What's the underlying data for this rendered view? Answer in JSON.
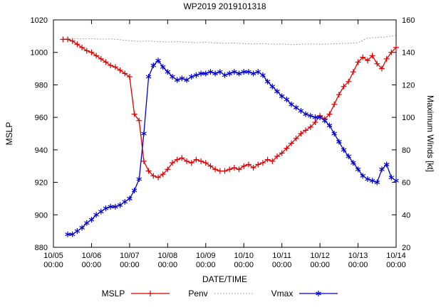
{
  "chart_data": {
    "type": "line",
    "title": "WP2019 2019101318",
    "xlabel": "DATE/TIME",
    "ylabel_left": "MSLP",
    "ylabel_right": "Maximum Winds [kt]",
    "grid": false,
    "legend_position": "bottom-center",
    "x_axis": {
      "min": 0,
      "max": 9,
      "tick_labels": [
        [
          "10/05",
          "00:00"
        ],
        [
          "10/06",
          "00:00"
        ],
        [
          "10/07",
          "00:00"
        ],
        [
          "10/08",
          "00:00"
        ],
        [
          "10/09",
          "00:00"
        ],
        [
          "10/10",
          "00:00"
        ],
        [
          "10/11",
          "00:00"
        ],
        [
          "10/12",
          "00:00"
        ],
        [
          "10/13",
          "00:00"
        ],
        [
          "10/14",
          "00:00"
        ]
      ]
    },
    "y_left": {
      "min": 880,
      "max": 1020,
      "step": 20
    },
    "y_right": {
      "min": 20,
      "max": 160,
      "step": 20
    },
    "series": [
      {
        "name": "MSLP",
        "axis": "left",
        "color": "#dd0000",
        "style": "solid",
        "marker": "plus",
        "points": [
          [
            0.25,
            1008
          ],
          [
            0.375,
            1008
          ],
          [
            0.5,
            1007
          ],
          [
            0.625,
            1005
          ],
          [
            0.75,
            1003
          ],
          [
            0.875,
            1001
          ],
          [
            1.0,
            1000
          ],
          [
            1.125,
            998
          ],
          [
            1.25,
            996
          ],
          [
            1.375,
            994
          ],
          [
            1.5,
            992
          ],
          [
            1.625,
            991
          ],
          [
            1.75,
            989
          ],
          [
            1.875,
            987
          ],
          [
            2.0,
            985
          ],
          [
            2.125,
            962
          ],
          [
            2.25,
            958
          ],
          [
            2.375,
            933
          ],
          [
            2.5,
            927
          ],
          [
            2.625,
            924
          ],
          [
            2.75,
            923
          ],
          [
            2.875,
            925
          ],
          [
            3.0,
            928
          ],
          [
            3.125,
            932
          ],
          [
            3.25,
            934
          ],
          [
            3.375,
            935
          ],
          [
            3.5,
            933
          ],
          [
            3.625,
            932
          ],
          [
            3.75,
            934
          ],
          [
            3.875,
            933
          ],
          [
            4.0,
            932
          ],
          [
            4.125,
            930
          ],
          [
            4.25,
            928
          ],
          [
            4.375,
            927
          ],
          [
            4.5,
            927
          ],
          [
            4.625,
            928
          ],
          [
            4.75,
            929
          ],
          [
            4.875,
            928
          ],
          [
            5.0,
            930
          ],
          [
            5.125,
            931
          ],
          [
            5.25,
            929
          ],
          [
            5.375,
            931
          ],
          [
            5.5,
            932
          ],
          [
            5.625,
            934
          ],
          [
            5.75,
            933
          ],
          [
            5.875,
            936
          ],
          [
            6.0,
            938
          ],
          [
            6.125,
            941
          ],
          [
            6.25,
            944
          ],
          [
            6.375,
            947
          ],
          [
            6.5,
            950
          ],
          [
            6.625,
            952
          ],
          [
            6.75,
            954
          ],
          [
            6.875,
            957
          ],
          [
            7.0,
            961
          ],
          [
            7.125,
            959
          ],
          [
            7.25,
            962
          ],
          [
            7.375,
            968
          ],
          [
            7.5,
            974
          ],
          [
            7.625,
            979
          ],
          [
            7.75,
            982
          ],
          [
            7.875,
            988
          ],
          [
            8.0,
            994
          ],
          [
            8.125,
            997
          ],
          [
            8.25,
            995
          ],
          [
            8.375,
            998
          ],
          [
            8.5,
            993
          ],
          [
            8.625,
            990
          ],
          [
            8.75,
            996
          ],
          [
            8.875,
            1000
          ],
          [
            9.0,
            1003
          ]
        ]
      },
      {
        "name": "Penv",
        "axis": "left",
        "color": "#888888",
        "style": "dotted",
        "marker": "none",
        "points": [
          [
            0.25,
            1008.5
          ],
          [
            0.5,
            1008.4
          ],
          [
            0.75,
            1008.3
          ],
          [
            1.0,
            1008.4
          ],
          [
            1.25,
            1008.2
          ],
          [
            1.5,
            1008.3
          ],
          [
            1.75,
            1007.8
          ],
          [
            2.0,
            1007.2
          ],
          [
            2.25,
            1006.8
          ],
          [
            2.5,
            1007.0
          ],
          [
            2.75,
            1006.6
          ],
          [
            3.0,
            1006.4
          ],
          [
            3.25,
            1006.6
          ],
          [
            3.5,
            1006.2
          ],
          [
            3.75,
            1006.0
          ],
          [
            4.0,
            1006.2
          ],
          [
            4.25,
            1005.8
          ],
          [
            4.5,
            1005.6
          ],
          [
            4.75,
            1005.8
          ],
          [
            5.0,
            1005.4
          ],
          [
            5.25,
            1005.2
          ],
          [
            5.5,
            1005.4
          ],
          [
            5.75,
            1005.0
          ],
          [
            6.0,
            1005.2
          ],
          [
            6.25,
            1004.8
          ],
          [
            6.5,
            1005.0
          ],
          [
            6.75,
            1005.2
          ],
          [
            7.0,
            1005.0
          ],
          [
            7.25,
            1005.2
          ],
          [
            7.5,
            1005.4
          ],
          [
            7.75,
            1005.6
          ],
          [
            8.0,
            1006.0
          ],
          [
            8.25,
            1008.8
          ],
          [
            8.5,
            1009.2
          ],
          [
            8.75,
            1009.6
          ],
          [
            9.0,
            1010.4
          ]
        ]
      },
      {
        "name": "Vmax",
        "axis": "right",
        "color": "#0000cc",
        "style": "solid",
        "marker": "star",
        "points": [
          [
            0.375,
            28
          ],
          [
            0.5,
            28
          ],
          [
            0.625,
            30
          ],
          [
            0.75,
            32
          ],
          [
            0.875,
            35
          ],
          [
            1.0,
            37
          ],
          [
            1.125,
            40
          ],
          [
            1.25,
            42
          ],
          [
            1.375,
            44
          ],
          [
            1.5,
            45
          ],
          [
            1.625,
            45
          ],
          [
            1.75,
            46
          ],
          [
            1.875,
            48
          ],
          [
            2.0,
            50
          ],
          [
            2.125,
            55
          ],
          [
            2.25,
            62
          ],
          [
            2.375,
            90
          ],
          [
            2.5,
            125
          ],
          [
            2.625,
            132
          ],
          [
            2.75,
            135
          ],
          [
            2.875,
            131
          ],
          [
            3.0,
            128
          ],
          [
            3.125,
            125
          ],
          [
            3.25,
            123
          ],
          [
            3.375,
            124
          ],
          [
            3.5,
            123
          ],
          [
            3.625,
            125
          ],
          [
            3.75,
            126
          ],
          [
            3.875,
            127
          ],
          [
            4.0,
            127
          ],
          [
            4.125,
            128
          ],
          [
            4.25,
            127
          ],
          [
            4.375,
            128
          ],
          [
            4.5,
            126
          ],
          [
            4.625,
            127
          ],
          [
            4.75,
            128
          ],
          [
            4.875,
            127
          ],
          [
            5.0,
            128
          ],
          [
            5.125,
            128
          ],
          [
            5.25,
            127
          ],
          [
            5.375,
            128
          ],
          [
            5.5,
            126
          ],
          [
            5.625,
            122
          ],
          [
            5.75,
            119
          ],
          [
            5.875,
            116
          ],
          [
            6.0,
            113
          ],
          [
            6.125,
            111
          ],
          [
            6.25,
            108
          ],
          [
            6.375,
            106
          ],
          [
            6.5,
            104
          ],
          [
            6.625,
            102
          ],
          [
            6.75,
            101
          ],
          [
            6.875,
            100
          ],
          [
            7.0,
            100
          ],
          [
            7.125,
            98
          ],
          [
            7.25,
            95
          ],
          [
            7.375,
            90
          ],
          [
            7.5,
            85
          ],
          [
            7.625,
            80
          ],
          [
            7.75,
            76
          ],
          [
            7.875,
            72
          ],
          [
            8.0,
            68
          ],
          [
            8.125,
            64
          ],
          [
            8.25,
            62
          ],
          [
            8.375,
            61
          ],
          [
            8.5,
            60
          ],
          [
            8.625,
            68
          ],
          [
            8.75,
            71
          ],
          [
            8.875,
            63
          ],
          [
            9.0,
            61
          ]
        ]
      }
    ]
  }
}
